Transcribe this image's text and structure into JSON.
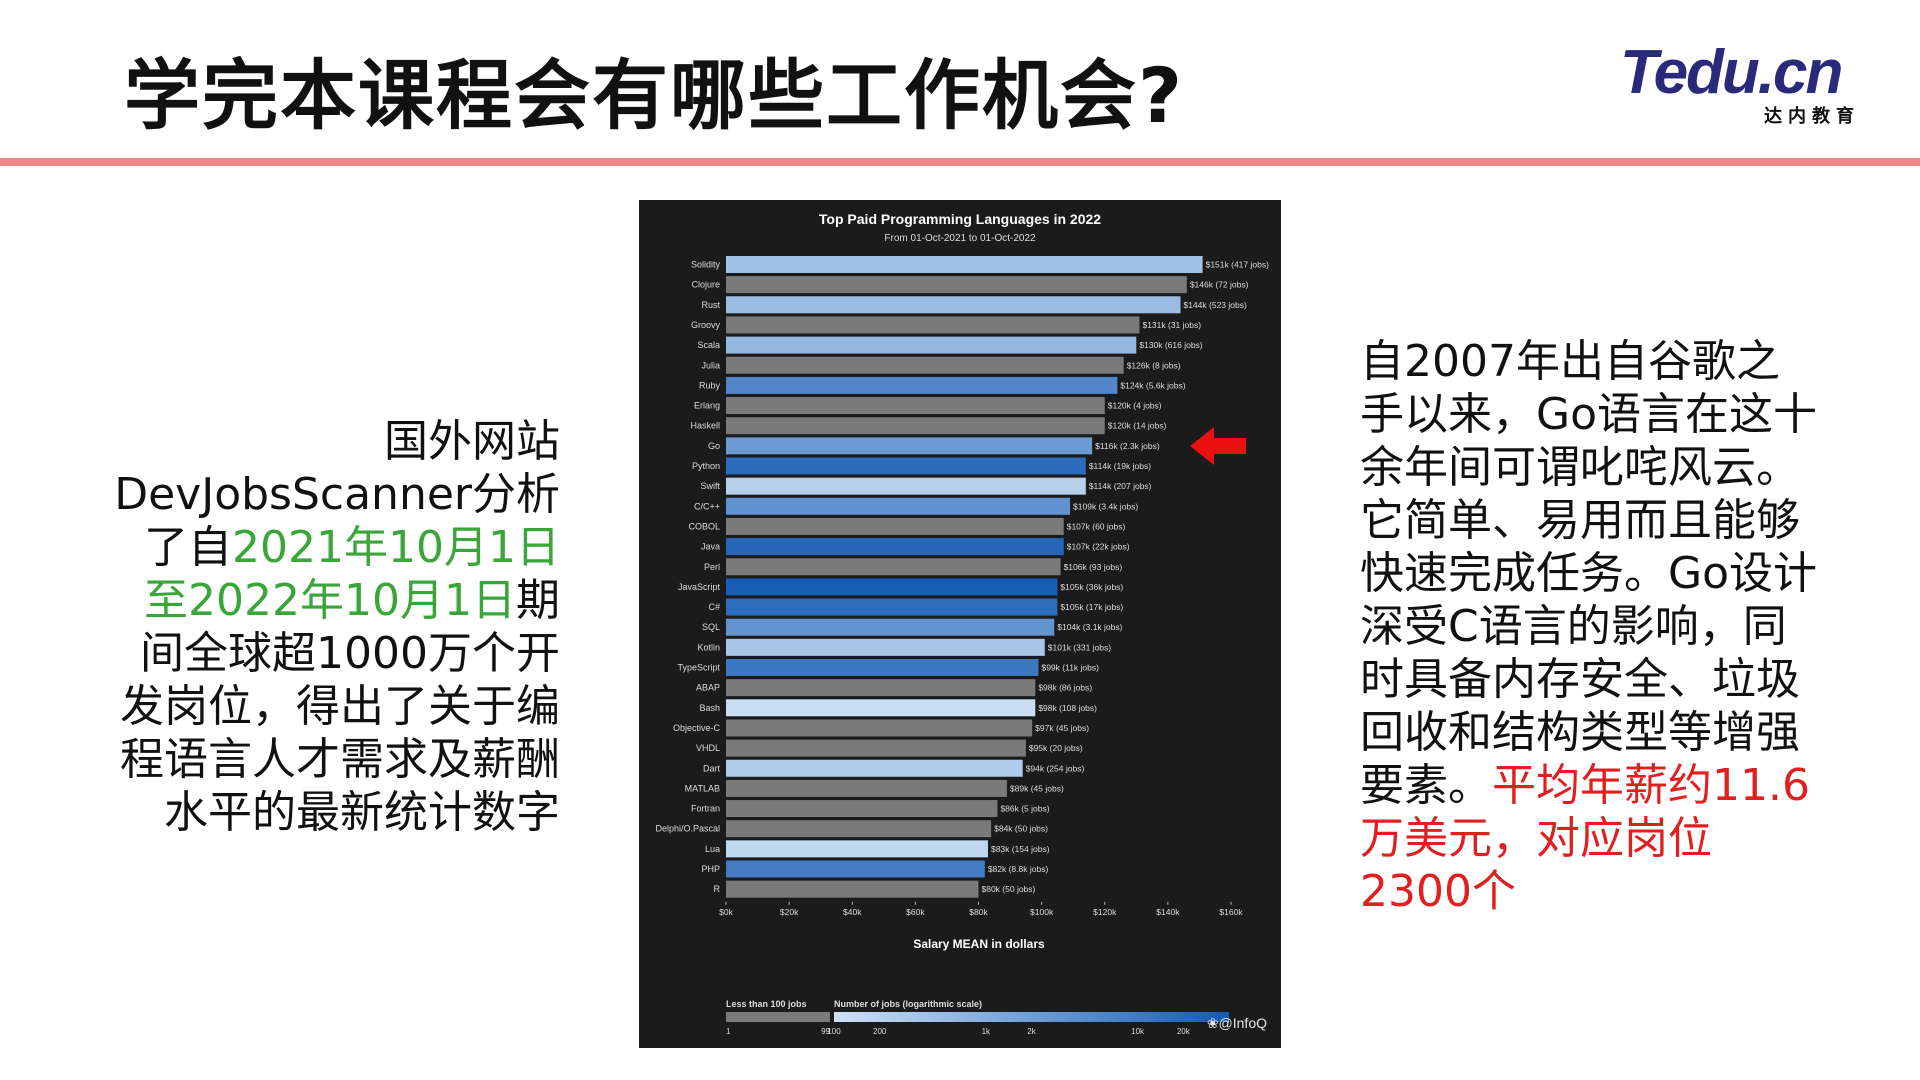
{
  "slide": {
    "title": "学完本课程会有哪些工作机会?",
    "logo_main": "Tedu.cn",
    "logo_sub": "达内教育"
  },
  "left_text": {
    "part1": "国外网站DevJobsScanner分析了自",
    "highlight": "2021年10月1日至2022年10月1日",
    "part2": "期间全球超1000万个开发岗位，得出了关于编程语言人才需求及薪酬水平的最新统计数字"
  },
  "right_text": {
    "part1": "自2007年出自谷歌之手以来，Go语言在这十余年间可谓叱咤风云。它简单、易用而且能够快速完成任务。Go设计深受C语言的影响，同时具备内存安全、垃圾回收和结构类型等增强要素。",
    "highlight": "平均年薪约11.6万美元，对应岗位2300个"
  },
  "colors": {
    "accent_rule": "#f08888",
    "green": "#3aa63a",
    "red": "#e02020",
    "chart_bg": "#1b1b1b",
    "bar_gray": "#7a7a7a"
  },
  "chart_data": {
    "type": "bar",
    "orientation": "horizontal",
    "title": "Top Paid Programming Languages in 2022",
    "subtitle": "From 01-Oct-2021 to 01-Oct-2022",
    "xlabel": "Salary MEAN in dollars",
    "xlim": [
      0,
      160
    ],
    "x_ticks": [
      "$0k",
      "$20k",
      "$40k",
      "$60k",
      "$80k",
      "$100k",
      "$120k",
      "$140k",
      "$160k"
    ],
    "categories": [
      "Solidity",
      "Clojure",
      "Rust",
      "Groovy",
      "Scala",
      "Julia",
      "Ruby",
      "Erlang",
      "Haskell",
      "Go",
      "Python",
      "Swift",
      "C/C++",
      "COBOL",
      "Java",
      "Perl",
      "JavaScript",
      "C#",
      "SQL",
      "Kotlin",
      "TypeScript",
      "ABAP",
      "Bash",
      "Objective-C",
      "VHDL",
      "Dart",
      "MATLAB",
      "Fortran",
      "Delphi/O.Pascal",
      "Lua",
      "PHP",
      "R"
    ],
    "values": [
      151,
      146,
      144,
      131,
      130,
      126,
      124,
      120,
      120,
      116,
      114,
      114,
      109,
      107,
      107,
      106,
      105,
      105,
      104,
      101,
      99,
      98,
      98,
      97,
      95,
      94,
      89,
      86,
      84,
      83,
      82,
      80
    ],
    "jobs": [
      417,
      72,
      523,
      31,
      616,
      8,
      5600,
      4,
      14,
      2300,
      19000,
      207,
      3400,
      60,
      22000,
      93,
      36000,
      17000,
      3100,
      331,
      11000,
      86,
      108,
      45,
      20,
      254,
      45,
      5,
      50,
      154,
      8800,
      50
    ],
    "bar_labels": [
      "$151k (417 jobs)",
      "$146k (72 jobs)",
      "$144k (523 jobs)",
      "$131k (31 jobs)",
      "$130k (616 jobs)",
      "$126k (8 jobs)",
      "$124k (5.6k jobs)",
      "$120k (4 jobs)",
      "$120k (14 jobs)",
      "$116k (2.3k jobs)",
      "$114k (19k jobs)",
      "$114k (207 jobs)",
      "$109k (3.4k jobs)",
      "$107k (60 jobs)",
      "$107k (22k jobs)",
      "$106k (93 jobs)",
      "$105k (36k jobs)",
      "$105k (17k jobs)",
      "$104k (3.1k jobs)",
      "$101k (331 jobs)",
      "$99k (11k jobs)",
      "$98k (86 jobs)",
      "$98k (108 jobs)",
      "$97k (45 jobs)",
      "$95k (20 jobs)",
      "$94k (254 jobs)",
      "$89k (45 jobs)",
      "$86k (5 jobs)",
      "$84k (50 jobs)",
      "$83k (154 jobs)",
      "$82k (8.8k jobs)",
      "$80k (50 jobs)"
    ],
    "legend": {
      "gray_label": "Less than 100 jobs",
      "gray_ticks": [
        "1",
        "99"
      ],
      "scale_label": "Number of jobs (logarithmic scale)",
      "scale_ticks": [
        "100",
        "200",
        "1k",
        "2k",
        "10k",
        "20k"
      ],
      "scale_ticks_values": [
        100,
        200,
        1000,
        2000,
        10000,
        20000
      ]
    },
    "watermark": "@InfoQ",
    "grid": false,
    "highlighted_category": "Go"
  }
}
